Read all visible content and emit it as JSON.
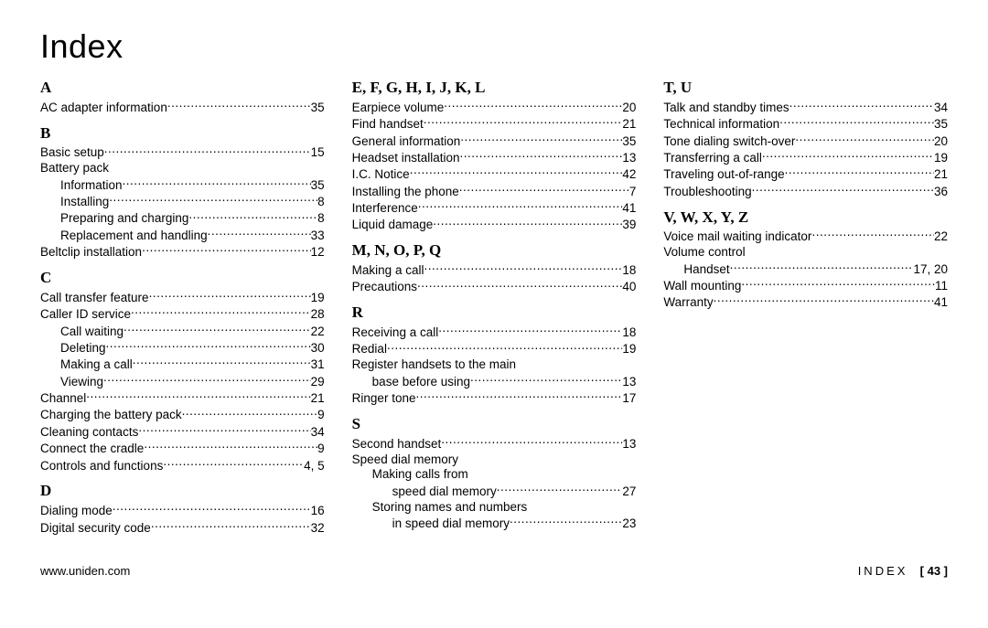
{
  "title": "Index",
  "footer": {
    "left": "www.uniden.com",
    "right_label": "INDEX",
    "right_page": "[ 43 ]"
  },
  "columns": [
    [
      {
        "type": "letter",
        "text": "A"
      },
      {
        "type": "entry",
        "label": "AC adapter information",
        "page": "35"
      },
      {
        "type": "letter",
        "text": "B"
      },
      {
        "type": "entry",
        "label": "Basic setup",
        "page": "15"
      },
      {
        "type": "entry",
        "label": "Battery pack",
        "page": "",
        "nopage": true
      },
      {
        "type": "entry",
        "label": "Information",
        "page": "35",
        "indent": 1
      },
      {
        "type": "entry",
        "label": "Installing",
        "page": "8",
        "indent": 1
      },
      {
        "type": "entry",
        "label": "Preparing and charging",
        "page": "8",
        "indent": 1
      },
      {
        "type": "entry",
        "label": "Replacement and handling",
        "page": "33",
        "indent": 1
      },
      {
        "type": "entry",
        "label": "Beltclip installation",
        "page": "12"
      },
      {
        "type": "letter",
        "text": "C"
      },
      {
        "type": "entry",
        "label": "Call transfer feature",
        "page": "19"
      },
      {
        "type": "entry",
        "label": "Caller ID service",
        "page": "28"
      },
      {
        "type": "entry",
        "label": "Call waiting",
        "page": "22",
        "indent": 1
      },
      {
        "type": "entry",
        "label": "Deleting",
        "page": "30",
        "indent": 1
      },
      {
        "type": "entry",
        "label": "Making a call",
        "page": "31",
        "indent": 1
      },
      {
        "type": "entry",
        "label": "Viewing",
        "page": "29",
        "indent": 1
      },
      {
        "type": "entry",
        "label": "Channel",
        "page": "21"
      },
      {
        "type": "entry",
        "label": "Charging the battery pack",
        "page": "9"
      },
      {
        "type": "entry",
        "label": "Cleaning contacts",
        "page": "34"
      },
      {
        "type": "entry",
        "label": "Connect the cradle",
        "page": "9"
      },
      {
        "type": "entry",
        "label": "Controls and functions",
        "page": "4, 5"
      },
      {
        "type": "letter",
        "text": "D"
      },
      {
        "type": "entry",
        "label": "Dialing mode",
        "page": "16"
      },
      {
        "type": "entry",
        "label": "Digital security code",
        "page": "32"
      }
    ],
    [
      {
        "type": "letter",
        "text": "E, F, G, H, I, J, K, L"
      },
      {
        "type": "entry",
        "label": "Earpiece volume",
        "page": "20"
      },
      {
        "type": "entry",
        "label": "Find handset",
        "page": "21"
      },
      {
        "type": "entry",
        "label": "General information",
        "page": "35"
      },
      {
        "type": "entry",
        "label": "Headset installation",
        "page": "13"
      },
      {
        "type": "entry",
        "label": "I.C. Notice",
        "page": "42"
      },
      {
        "type": "entry",
        "label": "Installing the phone",
        "page": "7"
      },
      {
        "type": "entry",
        "label": "Interference",
        "page": "41"
      },
      {
        "type": "entry",
        "label": "Liquid damage",
        "page": "39"
      },
      {
        "type": "letter",
        "text": "M, N, O, P, Q"
      },
      {
        "type": "entry",
        "label": "Making a call",
        "page": "18"
      },
      {
        "type": "entry",
        "label": "Precautions",
        "page": "40"
      },
      {
        "type": "letter",
        "text": "R"
      },
      {
        "type": "entry",
        "label": "Receiving a call",
        "page": "18"
      },
      {
        "type": "entry",
        "label": "Redial",
        "page": "19"
      },
      {
        "type": "entry",
        "label": "Register handsets to the main",
        "page": "",
        "nopage": true
      },
      {
        "type": "entry",
        "label": "base before using",
        "page": "13",
        "indent": 1
      },
      {
        "type": "entry",
        "label": "Ringer tone",
        "page": "17"
      },
      {
        "type": "letter",
        "text": "S"
      },
      {
        "type": "entry",
        "label": "Second handset",
        "page": "13"
      },
      {
        "type": "entry",
        "label": "Speed dial memory",
        "page": "",
        "nopage": true
      },
      {
        "type": "entry",
        "label": "Making calls from",
        "page": "",
        "indent": 1,
        "nopage": true
      },
      {
        "type": "entry",
        "label": "speed dial memory",
        "page": "27",
        "indent": 2
      },
      {
        "type": "entry",
        "label": "Storing names and numbers",
        "page": "",
        "indent": 1,
        "nopage": true
      },
      {
        "type": "entry",
        "label": "in speed dial memory",
        "page": "23",
        "indent": 2
      }
    ],
    [
      {
        "type": "letter",
        "text": "T, U"
      },
      {
        "type": "entry",
        "label": "Talk and standby times",
        "page": "34"
      },
      {
        "type": "entry",
        "label": "Technical information",
        "page": "35"
      },
      {
        "type": "entry",
        "label": "Tone dialing switch-over",
        "page": "20"
      },
      {
        "type": "entry",
        "label": "Transferring a call",
        "page": "19"
      },
      {
        "type": "entry",
        "label": "Traveling out-of-range",
        "page": "21"
      },
      {
        "type": "entry",
        "label": "Troubleshooting",
        "page": "36"
      },
      {
        "type": "letter",
        "text": "V, W, X, Y, Z"
      },
      {
        "type": "entry",
        "label": "Voice mail waiting indicator",
        "page": "22"
      },
      {
        "type": "entry",
        "label": "Volume control",
        "page": "",
        "nopage": true
      },
      {
        "type": "entry",
        "label": "Handset",
        "page": "17, 20",
        "indent": 1
      },
      {
        "type": "entry",
        "label": "Wall mounting",
        "page": "11"
      },
      {
        "type": "entry",
        "label": "Warranty",
        "page": "41"
      }
    ]
  ]
}
